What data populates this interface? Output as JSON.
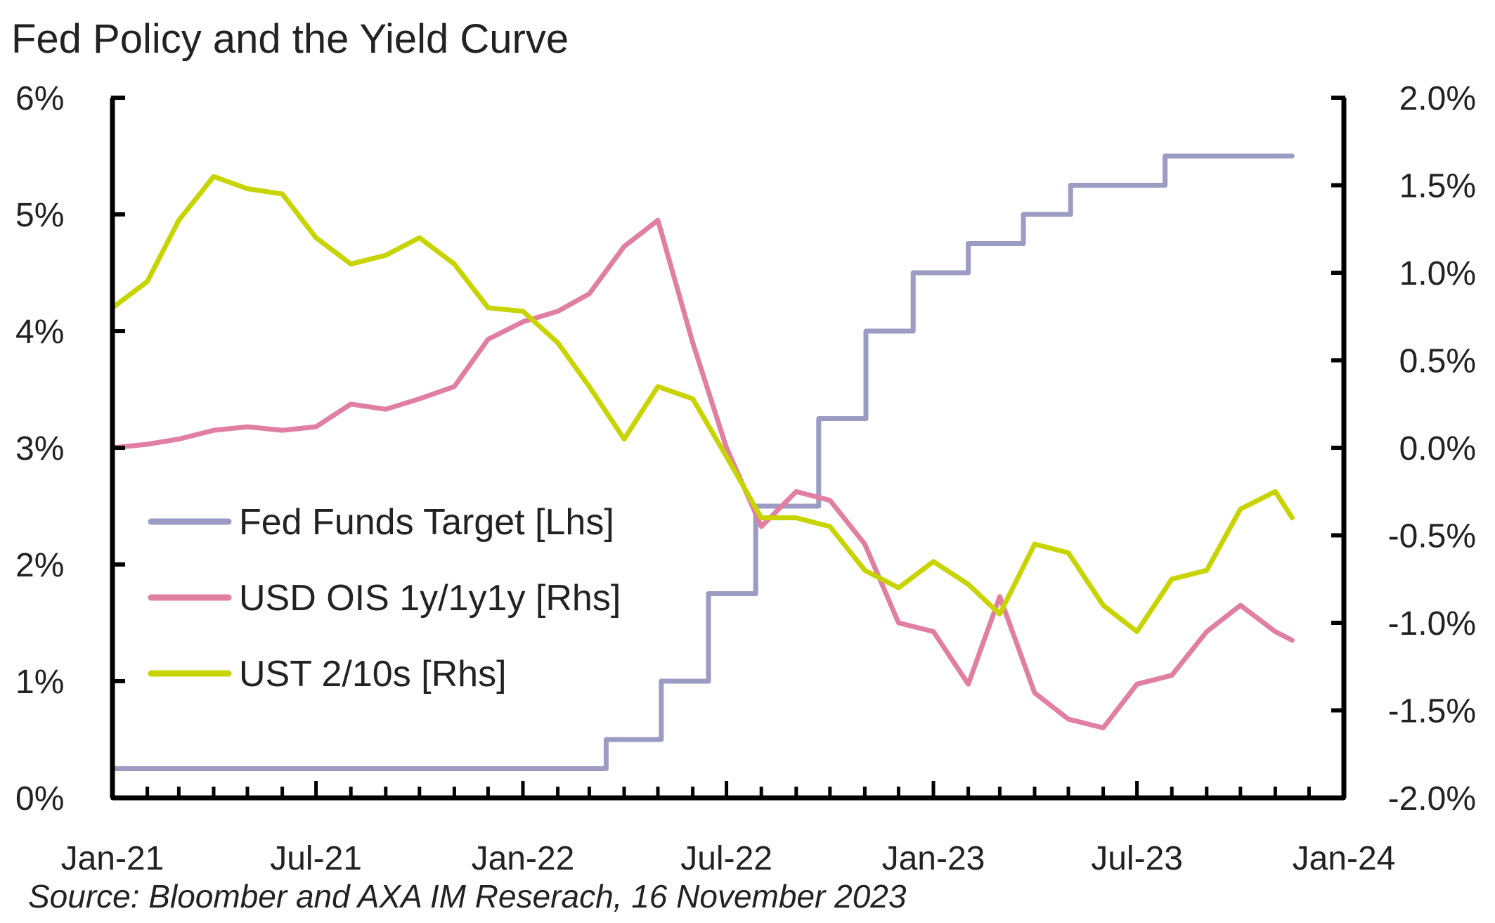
{
  "chart_data": {
    "type": "line",
    "title": "Fed Policy and the Yield Curve",
    "source": "Source: Bloomber and AXA IM Reserach, 16 November 2023",
    "x_ticks": [
      "Jan-21",
      "Jul-21",
      "Jan-22",
      "Jul-22",
      "Jan-23",
      "Jul-23",
      "Jan-24"
    ],
    "x_range": [
      "2021-01-01",
      "2024-01-01"
    ],
    "y_left": {
      "range": [
        0,
        6
      ],
      "ticks": [
        "0%",
        "1%",
        "2%",
        "3%",
        "4%",
        "5%",
        "6%"
      ]
    },
    "y_right": {
      "range": [
        -2.0,
        2.0
      ],
      "ticks": [
        "-2.0%",
        "-1.5%",
        "-1.0%",
        "-0.5%",
        "0.0%",
        "0.5%",
        "1.0%",
        "1.5%",
        "2.0%"
      ]
    },
    "legend_position": "left-center",
    "series": [
      {
        "name": "Fed Funds Target [Lhs]",
        "axis": "left",
        "color": "#9b9bc4",
        "step": true,
        "points": [
          [
            "2021-01-01",
            0.25
          ],
          [
            "2022-03-16",
            0.5
          ],
          [
            "2022-05-04",
            1.0
          ],
          [
            "2022-06-15",
            1.75
          ],
          [
            "2022-07-27",
            2.5
          ],
          [
            "2022-09-21",
            3.25
          ],
          [
            "2022-11-02",
            4.0
          ],
          [
            "2022-12-14",
            4.5
          ],
          [
            "2023-02-01",
            4.75
          ],
          [
            "2023-03-22",
            5.0
          ],
          [
            "2023-05-03",
            5.25
          ],
          [
            "2023-07-26",
            5.5
          ],
          [
            "2023-11-16",
            5.5
          ]
        ]
      },
      {
        "name": "USD OIS 1y/1y1y [Rhs]",
        "axis": "right",
        "color": "#e07fa1",
        "step": false,
        "points": [
          [
            "2021-01-01",
            0.0
          ],
          [
            "2021-02-01",
            0.02
          ],
          [
            "2021-03-01",
            0.05
          ],
          [
            "2021-04-01",
            0.1
          ],
          [
            "2021-05-01",
            0.12
          ],
          [
            "2021-06-01",
            0.1
          ],
          [
            "2021-07-01",
            0.12
          ],
          [
            "2021-08-01",
            0.25
          ],
          [
            "2021-09-01",
            0.22
          ],
          [
            "2021-10-01",
            0.28
          ],
          [
            "2021-11-01",
            0.35
          ],
          [
            "2021-12-01",
            0.62
          ],
          [
            "2022-01-01",
            0.72
          ],
          [
            "2022-02-01",
            0.78
          ],
          [
            "2022-03-01",
            0.88
          ],
          [
            "2022-04-01",
            1.15
          ],
          [
            "2022-05-01",
            1.3
          ],
          [
            "2022-06-01",
            0.6
          ],
          [
            "2022-07-01",
            0.0
          ],
          [
            "2022-08-01",
            -0.45
          ],
          [
            "2022-09-01",
            -0.25
          ],
          [
            "2022-10-01",
            -0.3
          ],
          [
            "2022-11-01",
            -0.55
          ],
          [
            "2022-12-01",
            -1.0
          ],
          [
            "2023-01-01",
            -1.05
          ],
          [
            "2023-02-01",
            -1.35
          ],
          [
            "2023-03-01",
            -0.85
          ],
          [
            "2023-04-01",
            -1.4
          ],
          [
            "2023-05-01",
            -1.55
          ],
          [
            "2023-06-01",
            -1.6
          ],
          [
            "2023-07-01",
            -1.35
          ],
          [
            "2023-08-01",
            -1.3
          ],
          [
            "2023-09-01",
            -1.05
          ],
          [
            "2023-10-01",
            -0.9
          ],
          [
            "2023-11-01",
            -1.05
          ],
          [
            "2023-11-16",
            -1.1
          ]
        ]
      },
      {
        "name": "UST 2/10s [Rhs]",
        "axis": "right",
        "color": "#c8d400",
        "step": false,
        "points": [
          [
            "2021-01-01",
            0.8
          ],
          [
            "2021-02-01",
            0.95
          ],
          [
            "2021-03-01",
            1.3
          ],
          [
            "2021-04-01",
            1.55
          ],
          [
            "2021-05-01",
            1.48
          ],
          [
            "2021-06-01",
            1.45
          ],
          [
            "2021-07-01",
            1.2
          ],
          [
            "2021-08-01",
            1.05
          ],
          [
            "2021-09-01",
            1.1
          ],
          [
            "2021-10-01",
            1.2
          ],
          [
            "2021-11-01",
            1.05
          ],
          [
            "2021-12-01",
            0.8
          ],
          [
            "2022-01-01",
            0.78
          ],
          [
            "2022-02-01",
            0.6
          ],
          [
            "2022-03-01",
            0.35
          ],
          [
            "2022-04-01",
            0.05
          ],
          [
            "2022-05-01",
            0.35
          ],
          [
            "2022-06-01",
            0.28
          ],
          [
            "2022-07-01",
            -0.05
          ],
          [
            "2022-08-01",
            -0.4
          ],
          [
            "2022-09-01",
            -0.4
          ],
          [
            "2022-10-01",
            -0.45
          ],
          [
            "2022-11-01",
            -0.7
          ],
          [
            "2022-12-01",
            -0.8
          ],
          [
            "2023-01-01",
            -0.65
          ],
          [
            "2023-02-01",
            -0.78
          ],
          [
            "2023-03-01",
            -0.95
          ],
          [
            "2023-04-01",
            -0.55
          ],
          [
            "2023-05-01",
            -0.6
          ],
          [
            "2023-06-01",
            -0.9
          ],
          [
            "2023-07-01",
            -1.05
          ],
          [
            "2023-08-01",
            -0.75
          ],
          [
            "2023-09-01",
            -0.7
          ],
          [
            "2023-10-01",
            -0.35
          ],
          [
            "2023-11-01",
            -0.25
          ],
          [
            "2023-11-16",
            -0.4
          ]
        ]
      }
    ]
  }
}
